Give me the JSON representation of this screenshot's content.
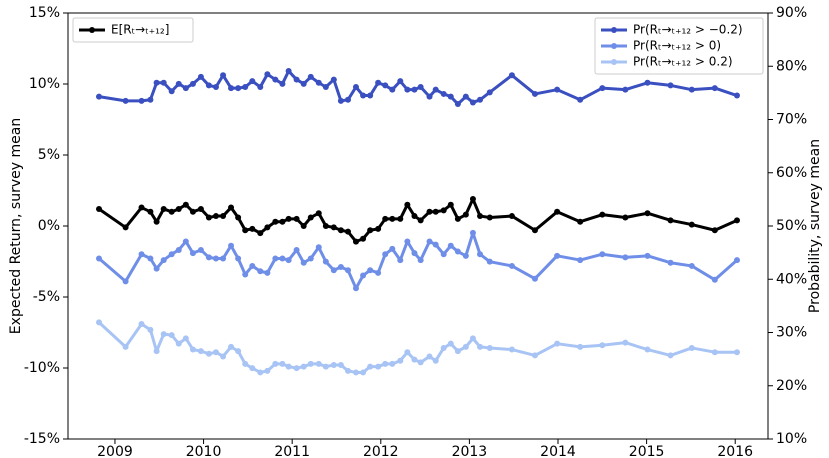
{
  "chart_data": {
    "type": "line",
    "x": [
      2008.82,
      2009.12,
      2009.3,
      2009.4,
      2009.47,
      2009.55,
      2009.64,
      2009.72,
      2009.8,
      2009.88,
      2009.97,
      2010.06,
      2010.14,
      2010.22,
      2010.31,
      2010.39,
      2010.47,
      2010.55,
      2010.64,
      2010.72,
      2010.81,
      2010.89,
      2010.96,
      2011.05,
      2011.13,
      2011.21,
      2011.3,
      2011.38,
      2011.47,
      2011.55,
      2011.63,
      2011.72,
      2011.8,
      2011.88,
      2011.97,
      2012.05,
      2012.13,
      2012.22,
      2012.3,
      2012.38,
      2012.45,
      2012.55,
      2012.62,
      2012.71,
      2012.79,
      2012.87,
      2012.96,
      2013.04,
      2013.12,
      2013.23,
      2013.48,
      2013.74,
      2013.99,
      2014.25,
      2014.5,
      2014.76,
      2015.01,
      2015.27,
      2015.51,
      2015.77,
      2016.02
    ],
    "series": [
      {
        "name": "E[Rₜ→ₜ₊₁₂]",
        "color": "#000000",
        "axis": "y",
        "values": [
          1.2,
          -0.1,
          1.3,
          1.0,
          0.3,
          1.2,
          1.0,
          1.2,
          1.5,
          1.0,
          1.2,
          0.6,
          0.7,
          0.7,
          1.3,
          0.6,
          -0.3,
          -0.2,
          -0.5,
          -0.1,
          0.3,
          0.3,
          0.5,
          0.5,
          0.0,
          0.6,
          0.9,
          0.0,
          -0.1,
          -0.3,
          -0.4,
          -1.1,
          -0.9,
          -0.3,
          -0.2,
          0.5,
          0.5,
          0.5,
          1.5,
          0.7,
          0.4,
          1.0,
          1.0,
          1.1,
          1.5,
          0.5,
          0.8,
          1.9,
          0.7,
          0.6,
          0.7,
          -0.3,
          1.0,
          0.3,
          0.8,
          0.6,
          0.9,
          0.4,
          0.1,
          -0.3,
          0.4
        ]
      },
      {
        "name": "Pr(Rₜ→ₜ₊₁₂ > −0.2)",
        "color": "#3a4fc0",
        "axis": "y2",
        "values": [
          74.3,
          73.5,
          73.5,
          73.7,
          76.9,
          76.9,
          75.3,
          76.7,
          75.9,
          76.7,
          78.0,
          76.4,
          76.1,
          78.3,
          75.9,
          75.9,
          76.1,
          77.2,
          76.1,
          78.5,
          77.5,
          76.7,
          79.1,
          77.5,
          76.7,
          78.0,
          76.9,
          76.1,
          77.5,
          73.5,
          73.7,
          76.1,
          74.5,
          74.5,
          76.9,
          76.4,
          75.6,
          77.2,
          75.6,
          75.6,
          76.1,
          74.3,
          75.6,
          74.8,
          74.3,
          72.9,
          74.3,
          73.2,
          73.7,
          75.1,
          78.3,
          74.8,
          75.6,
          73.7,
          75.9,
          75.6,
          76.9,
          76.4,
          75.6,
          75.9,
          74.5
        ]
      },
      {
        "name": "Pr(Rₜ→ₜ₊₁₂ > 0)",
        "color": "#6f8ee8",
        "axis": "y2",
        "values": [
          43.9,
          39.6,
          44.7,
          43.9,
          42.0,
          43.6,
          44.7,
          45.5,
          47.1,
          44.9,
          45.5,
          44.1,
          43.9,
          43.9,
          46.3,
          43.9,
          40.9,
          42.5,
          41.5,
          41.2,
          43.9,
          43.9,
          43.6,
          45.5,
          43.1,
          43.9,
          46.0,
          43.3,
          41.7,
          42.3,
          41.7,
          38.3,
          40.7,
          41.7,
          41.2,
          44.7,
          45.7,
          43.6,
          47.1,
          44.9,
          43.6,
          47.1,
          46.5,
          44.7,
          46.3,
          45.2,
          44.4,
          48.7,
          44.7,
          43.3,
          42.5,
          40.1,
          44.4,
          43.6,
          44.7,
          44.1,
          44.4,
          43.1,
          42.5,
          39.9,
          43.6
        ]
      },
      {
        "name": "Pr(Rₜ→ₜ₊₁₂ > 0.2)",
        "color": "#a8c4f5",
        "axis": "y2",
        "values": [
          31.9,
          27.3,
          31.6,
          30.5,
          26.5,
          29.7,
          29.5,
          27.9,
          28.9,
          26.8,
          26.5,
          26.0,
          26.3,
          25.5,
          27.3,
          26.5,
          24.1,
          23.3,
          22.5,
          22.8,
          24.1,
          24.1,
          23.6,
          23.3,
          23.6,
          24.1,
          24.1,
          23.6,
          23.9,
          23.9,
          22.8,
          22.5,
          22.5,
          23.6,
          23.6,
          24.1,
          24.1,
          24.7,
          26.3,
          24.9,
          24.4,
          25.5,
          24.7,
          27.1,
          27.9,
          26.5,
          27.3,
          28.9,
          27.3,
          27.1,
          26.8,
          25.7,
          27.9,
          27.3,
          27.6,
          28.1,
          26.8,
          25.7,
          27.1,
          26.3,
          26.3
        ]
      }
    ],
    "ylabel": "Expected Return, survey mean",
    "y2label": "Probability, survey mean",
    "xlim": [
      2008.47,
      2016.37
    ],
    "xticks": [
      2009,
      2010,
      2011,
      2012,
      2013,
      2014,
      2015,
      2016
    ],
    "ylim": [
      -15,
      15
    ],
    "yticks": [
      {
        "value": -15,
        "label": "-15%"
      },
      {
        "value": -10,
        "label": "-10%"
      },
      {
        "value": -5,
        "label": "-5%"
      },
      {
        "value": 0,
        "label": "0%"
      },
      {
        "value": 5,
        "label": "5%"
      },
      {
        "value": 10,
        "label": "10%"
      },
      {
        "value": 15,
        "label": "15%"
      }
    ],
    "y2lim": [
      10,
      90
    ],
    "y2ticks": [
      {
        "value": 10,
        "label": "10%"
      },
      {
        "value": 20,
        "label": "20%"
      },
      {
        "value": 30,
        "label": "30%"
      },
      {
        "value": 40,
        "label": "40%"
      },
      {
        "value": 50,
        "label": "50%"
      },
      {
        "value": 60,
        "label": "60%"
      },
      {
        "value": 70,
        "label": "70%"
      },
      {
        "value": 80,
        "label": "80%"
      },
      {
        "value": 90,
        "label": "90%"
      }
    ],
    "legend": {
      "y": "upper left",
      "y2": "upper right"
    },
    "grid": false
  }
}
